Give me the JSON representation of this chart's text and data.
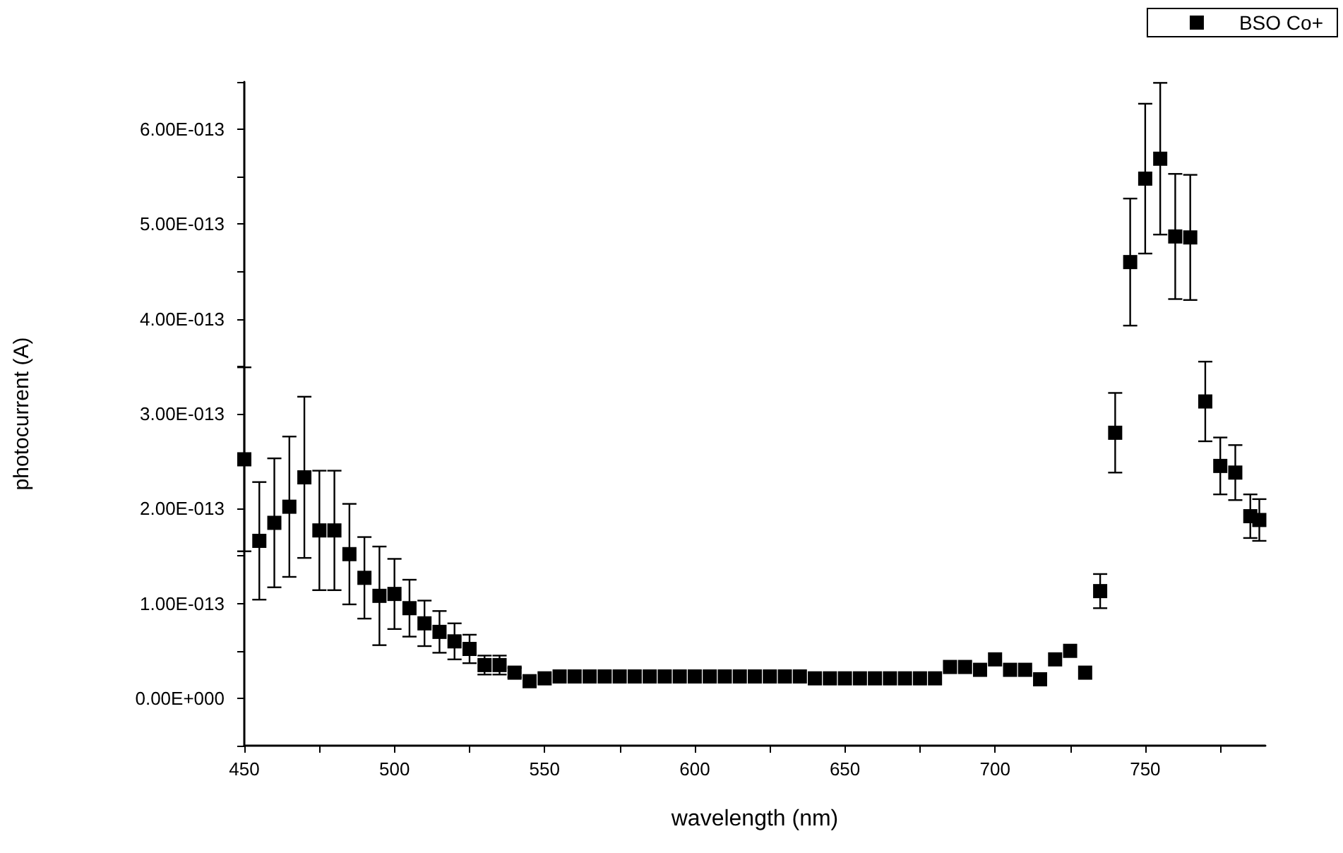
{
  "chart_data": {
    "type": "scatter",
    "xlabel": "wavelength (nm)",
    "ylabel": "photocurrent (A)",
    "x": [
      450,
      455,
      460,
      465,
      470,
      475,
      480,
      485,
      490,
      495,
      500,
      505,
      510,
      515,
      520,
      525,
      530,
      535,
      540,
      545,
      550,
      555,
      560,
      565,
      570,
      575,
      580,
      585,
      590,
      595,
      600,
      605,
      610,
      615,
      620,
      625,
      630,
      635,
      640,
      645,
      650,
      655,
      660,
      665,
      670,
      675,
      680,
      685,
      690,
      695,
      700,
      705,
      710,
      715,
      720,
      725,
      730,
      735,
      740,
      745,
      750,
      755,
      760,
      765,
      770,
      775,
      780,
      785,
      788
    ],
    "series": [
      {
        "name": "BSO Co+",
        "color": "#000000",
        "marker": "square",
        "values": [
          2.52e-13,
          1.66e-13,
          1.85e-13,
          2.02e-13,
          2.33e-13,
          1.77e-13,
          1.77e-13,
          1.52e-13,
          1.27e-13,
          1.08e-13,
          1.1e-13,
          9.5e-14,
          7.9e-14,
          7e-14,
          6e-14,
          5.2e-14,
          3.5e-14,
          3.5e-14,
          2.7e-14,
          1.8e-14,
          2.1e-14,
          2.3e-14,
          2.3e-14,
          2.3e-14,
          2.3e-14,
          2.3e-14,
          2.3e-14,
          2.3e-14,
          2.3e-14,
          2.3e-14,
          2.3e-14,
          2.3e-14,
          2.3e-14,
          2.3e-14,
          2.3e-14,
          2.3e-14,
          2.3e-14,
          2.3e-14,
          2.1e-14,
          2.1e-14,
          2.1e-14,
          2.1e-14,
          2.1e-14,
          2.1e-14,
          2.1e-14,
          2.1e-14,
          2.1e-14,
          3.3e-14,
          3.3e-14,
          3e-14,
          4.1e-14,
          3e-14,
          3e-14,
          2e-14,
          4.1e-14,
          5e-14,
          2.7e-14,
          1.13e-13,
          2.8e-13,
          4.6e-13,
          5.48e-13,
          5.69e-13,
          4.87e-13,
          4.86e-13,
          3.13e-13,
          2.45e-13,
          2.38e-13,
          1.92e-13,
          1.88e-13
        ],
        "errors": [
          9.7e-14,
          6.2e-14,
          6.8e-14,
          7.4e-14,
          8.5e-14,
          6.3e-14,
          6.3e-14,
          5.3e-14,
          4.3e-14,
          5.2e-14,
          3.7e-14,
          3e-14,
          2.4e-14,
          2.2e-14,
          1.9e-14,
          1.5e-14,
          1e-14,
          1e-14,
          5e-15,
          null,
          null,
          null,
          null,
          null,
          null,
          null,
          null,
          null,
          null,
          null,
          null,
          null,
          null,
          null,
          null,
          null,
          null,
          null,
          null,
          null,
          null,
          null,
          null,
          null,
          null,
          null,
          null,
          null,
          null,
          null,
          null,
          null,
          null,
          null,
          null,
          null,
          null,
          1.8e-14,
          4.2e-14,
          6.7e-14,
          7.9e-14,
          8e-14,
          6.6e-14,
          6.6e-14,
          4.2e-14,
          3e-14,
          2.9e-14,
          2.3e-14,
          2.2e-14
        ]
      }
    ],
    "xlim": [
      450,
      790
    ],
    "xticks": [
      450,
      {
        "value": 475,
        "label": null
      },
      500,
      {
        "value": 525,
        "label": null
      },
      550,
      {
        "value": 575,
        "label": null
      },
      600,
      {
        "value": 625,
        "label": null
      },
      650,
      {
        "value": 675,
        "label": null
      },
      700,
      {
        "value": 725,
        "label": null
      },
      750,
      {
        "value": 775,
        "label": null
      }
    ],
    "ylim": [
      -5e-14,
      6.5e-13
    ],
    "yticks": [
      {
        "value": -5e-14,
        "label": null
      },
      {
        "value": 0,
        "label": "0.00E+000"
      },
      {
        "value": 5e-14,
        "label": null
      },
      {
        "value": 1e-13,
        "label": "1.00E-013"
      },
      {
        "value": 1.5e-13,
        "label": null
      },
      {
        "value": 2e-13,
        "label": "2.00E-013"
      },
      {
        "value": 2.5e-13,
        "label": null
      },
      {
        "value": 3e-13,
        "label": "3.00E-013"
      },
      {
        "value": 3.5e-13,
        "label": null
      },
      {
        "value": 4e-13,
        "label": "4.00E-013"
      },
      {
        "value": 4.5e-13,
        "label": null
      },
      {
        "value": 5e-13,
        "label": "5.00E-013"
      },
      {
        "value": 5.5e-13,
        "label": null
      },
      {
        "value": 6e-13,
        "label": "6.00E-013"
      },
      {
        "value": 6.5e-13,
        "label": null
      }
    ],
    "grid": false,
    "legend": "top right"
  }
}
